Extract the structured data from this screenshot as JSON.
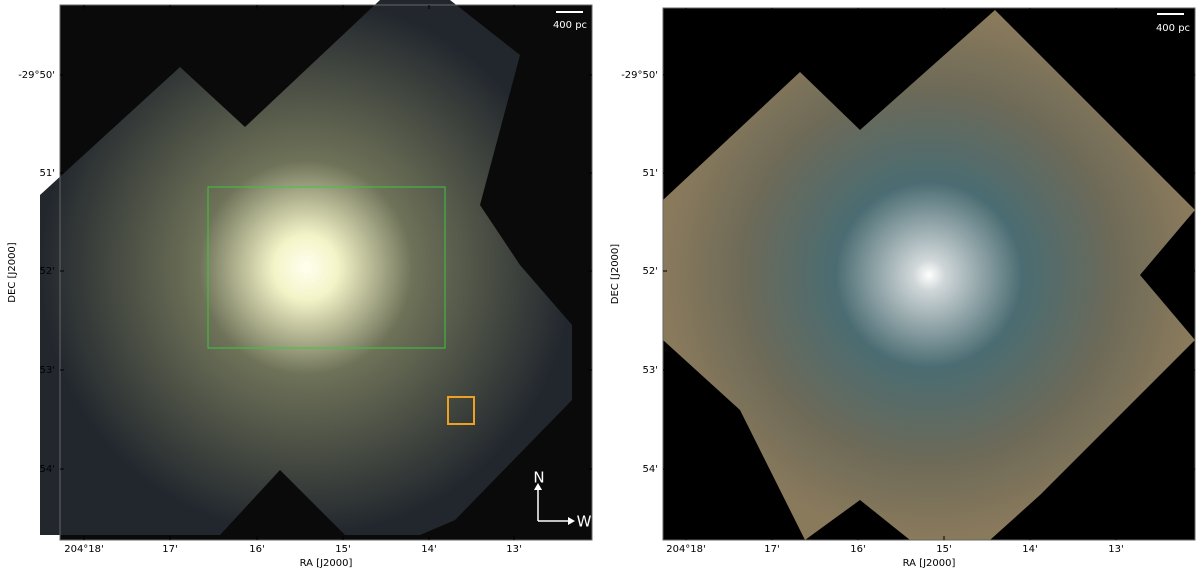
{
  "panels": [
    {
      "scale_bar": "400 pc",
      "yticks": [
        "-29°50'",
        "51'",
        "52'",
        "53'",
        "54'"
      ],
      "xticks": [
        "204°18'",
        "17'",
        "16'",
        "15'",
        "14'",
        "13'"
      ],
      "xlabel": "RA [J2000]",
      "ylabel": "DEC [J2000]",
      "compass": {
        "north": "N",
        "west": "W"
      }
    },
    {
      "scale_bar": "400 pc",
      "yticks": [
        "-29°50'",
        "51'",
        "52'",
        "53'",
        "54'"
      ],
      "xticks": [
        "204°18'",
        "17'",
        "16'",
        "15'",
        "14'",
        "13'"
      ],
      "xlabel": "RA [J2000]",
      "ylabel": "DEC [J2000]"
    }
  ]
}
